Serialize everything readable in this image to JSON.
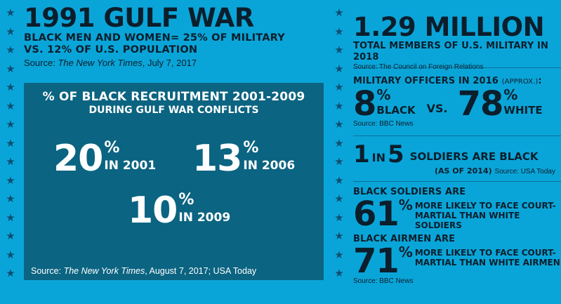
{
  "left": {
    "title": "1991 GULF WAR",
    "line1": "BLACK MEN AND WOMEN= 25% OF MILITARY",
    "line2": "VS. 12% OF U.S. POPULATION",
    "source_prefix": "Source: ",
    "source_pub": "The New York Times",
    "source_date": ", July 7, 2017"
  },
  "box": {
    "title": "% OF BLACK RECRUITMENT 2001-2009",
    "subtitle": "DURING GULF WAR CONFLICTS",
    "stats": [
      {
        "value": "20",
        "pct": "%",
        "label": "IN 2001"
      },
      {
        "value": "13",
        "pct": "%",
        "label": "IN 2006"
      },
      {
        "value": "10",
        "pct": "%",
        "label": "IN 2009"
      }
    ],
    "source_prefix": "Source: ",
    "source_pub": "The New York Times",
    "source_rest": ", August 7, 2017; USA Today"
  },
  "right": {
    "s1": {
      "big": "1.29 MILLION",
      "text": "TOTAL MEMBERS OF U.S. MILITARY IN 2018",
      "source": "Source: The Council on Foreign Relations"
    },
    "s2": {
      "head": "MILITARY OFFICERS IN 2016",
      "approx": "(APPROX.)",
      "colon": ":",
      "v1": "8",
      "pct": "%",
      "l1": "BLACK",
      "vs": "VS.",
      "v2": "78",
      "l2": "WHITE",
      "source": "Source: BBC News"
    },
    "s3": {
      "one": "1",
      "in": "IN",
      "five": "5",
      "text": "SOLDIERS ARE BLACK",
      "asof": "(AS OF 2014)",
      "source": "Source: USA Today"
    },
    "s4": {
      "head": "BLACK SOLDIERS ARE",
      "value": "61",
      "pct": "%",
      "l1": "MORE LIKELY TO FACE COURT-",
      "l2": "MARTIAL THAN WHITE SOLDIERS"
    },
    "s5": {
      "head": "BLACK AIRMEN ARE",
      "value": "71",
      "pct": "%",
      "l1": "MORE LIKELY TO FACE COURT-",
      "l2": "MARTIAL THAN WHITE AIRMEN",
      "source": "Source: BBC News"
    }
  },
  "colors": {
    "background": "#0aa5d8",
    "box": "#0b6481",
    "text_dark": "#0b1e2c",
    "star": "#0c4d72"
  },
  "icons": [
    "star-icon"
  ]
}
